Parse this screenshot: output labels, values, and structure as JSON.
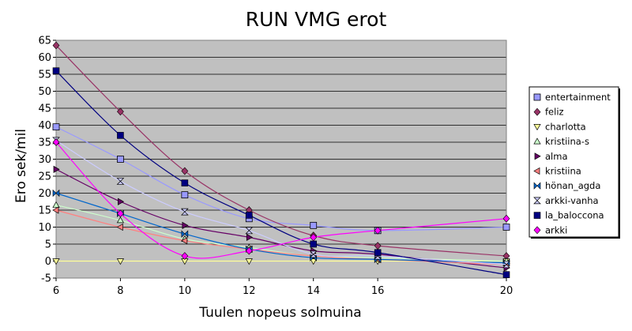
{
  "chart_data": {
    "type": "line",
    "title": "RUN VMG erot",
    "xlabel": "Tuulen nopeus solmuina",
    "ylabel": "Ero sek/mil",
    "x": [
      6,
      8,
      10,
      12,
      14,
      16,
      20
    ],
    "ylim": [
      -5,
      65
    ],
    "yticks": [
      -5,
      0,
      5,
      10,
      15,
      20,
      25,
      30,
      35,
      40,
      45,
      50,
      55,
      60,
      65
    ],
    "grid": true,
    "legend_position": "right",
    "series": [
      {
        "name": "entertainment",
        "values": [
          39.5,
          30,
          19.5,
          12.5,
          10.5,
          9,
          10
        ],
        "color": "#9999ff",
        "marker": "square-light"
      },
      {
        "name": "feliz",
        "values": [
          63.5,
          44,
          26.5,
          15,
          7.5,
          4.5,
          1.5
        ],
        "color": "#993366",
        "marker": "diamond"
      },
      {
        "name": "charlotta",
        "values": [
          0,
          0,
          0,
          0,
          0,
          0,
          0
        ],
        "color": "#ffff99",
        "marker": "triangle-down"
      },
      {
        "name": "kristiina-s",
        "values": [
          16.5,
          12,
          6.5,
          4,
          1.5,
          1,
          0
        ],
        "color": "#ccffcc",
        "marker": "triangle-up"
      },
      {
        "name": "alma",
        "values": [
          27,
          17.5,
          10.5,
          7,
          3,
          2,
          -2
        ],
        "color": "#660066",
        "marker": "triangle-right"
      },
      {
        "name": "kristiina",
        "values": [
          15,
          10,
          6,
          3.5,
          1.5,
          0.5,
          -1
        ],
        "color": "#ff8080",
        "marker": "triangle-left"
      },
      {
        "name": "hönan_agda",
        "values": [
          20,
          14,
          8,
          3.5,
          1,
          0.5,
          -0.5
        ],
        "color": "#0066cc",
        "marker": "bowtie"
      },
      {
        "name": "arkki-vanha",
        "values": [
          35.5,
          23.5,
          14.5,
          9,
          2,
          1.5,
          -1
        ],
        "color": "#ccccff",
        "marker": "hourglass"
      },
      {
        "name": "la_baloccona",
        "values": [
          56,
          37,
          23,
          13.5,
          5,
          2.5,
          -4
        ],
        "color": "#000080",
        "marker": "square"
      },
      {
        "name": "arkki",
        "values": [
          35,
          14,
          1.5,
          3,
          7,
          9,
          12.5
        ],
        "color": "#ff00ff",
        "marker": "diamond"
      }
    ]
  }
}
